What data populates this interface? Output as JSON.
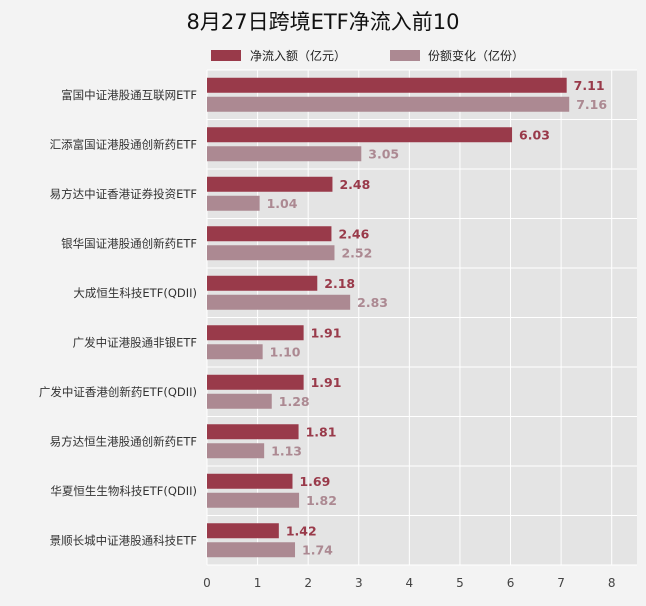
{
  "chart_data": {
    "type": "bar",
    "orientation": "horizontal",
    "title": "8月27日跨境ETF净流入前10",
    "xlabel": "",
    "ylabel": "",
    "xlim": [
      0,
      8.5
    ],
    "xticks": [
      "0",
      "1",
      "2",
      "3",
      "4",
      "5",
      "6",
      "7",
      "8"
    ],
    "grid": true,
    "legend_position": "top",
    "categories": [
      "富国中证港股通互联网ETF",
      "汇添富国证港股通创新药ETF",
      "易方达中证香港证券投资ETF",
      "银华国证港股通创新药ETF",
      "大成恒生科技ETF(QDII)",
      "广发中证港股通非银ETF",
      "广发中证香港创新药ETF(QDII)",
      "易方达恒生港股通创新药ETF",
      "华夏恒生生物科技ETF(QDII)",
      "景顺长城中证港股通科技ETF"
    ],
    "series": [
      {
        "name": "净流入额（亿元）",
        "color": "#993a4a",
        "values": [
          7.11,
          6.03,
          2.48,
          2.46,
          2.18,
          1.91,
          1.91,
          1.81,
          1.69,
          1.42
        ],
        "labels": [
          "7.11",
          "6.03",
          "2.48",
          "2.46",
          "2.18",
          "1.91",
          "1.91",
          "1.81",
          "1.69",
          "1.42"
        ]
      },
      {
        "name": "份额变化（亿份）",
        "color": "#ac8992",
        "values": [
          7.16,
          3.05,
          1.04,
          2.52,
          2.83,
          1.1,
          1.28,
          1.13,
          1.82,
          1.74
        ],
        "labels": [
          "7.16",
          "3.05",
          "1.04",
          "2.52",
          "2.83",
          "1.10",
          "1.28",
          "1.13",
          "1.82",
          "1.74"
        ]
      }
    ],
    "colors": {
      "background": "#f3f3f3",
      "plot_background": "#e4e4e4",
      "grid": "#ffffff"
    }
  }
}
